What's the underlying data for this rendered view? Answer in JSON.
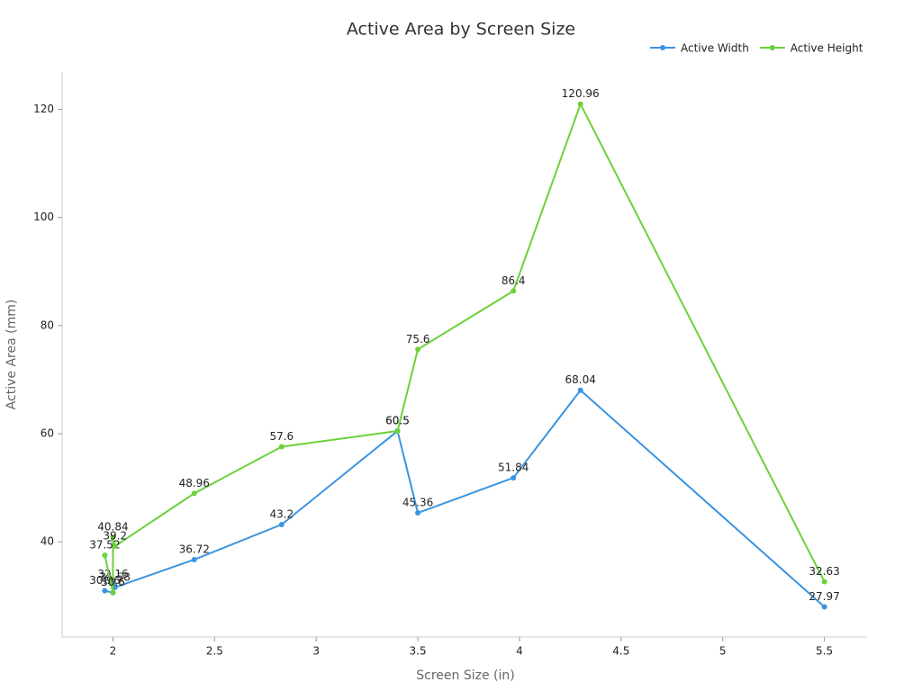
{
  "chart_data": {
    "type": "line",
    "title": "Active Area by Screen Size",
    "x_label": "Screen Size (in)",
    "y_label": "Active Area (mm)",
    "x": [
      1.96,
      2.0,
      2.0,
      2.01,
      2.4,
      2.83,
      3.4,
      3.5,
      3.97,
      4.3,
      5.5
    ],
    "series": [
      {
        "name": "Active Width",
        "color": "#3b94e0",
        "values": [
          30.96,
          30.6,
          32.16,
          31.58,
          36.72,
          43.2,
          60.5,
          45.36,
          51.84,
          68.04,
          27.97
        ]
      },
      {
        "name": "Active Height",
        "color": "#6cd13a",
        "values": [
          37.52,
          30.6,
          40.84,
          39.2,
          48.96,
          57.6,
          60.5,
          75.6,
          86.4,
          120.96,
          32.63
        ]
      }
    ],
    "xlim": [
      1.75,
      5.71
    ],
    "xticks": [
      2,
      2.5,
      3,
      3.5,
      4,
      4.5,
      5,
      5.5
    ],
    "ylim": [
      22.4,
      126.9
    ],
    "yticks": [
      40,
      60,
      80,
      100,
      120
    ],
    "grid": false,
    "legend": "top-right"
  }
}
